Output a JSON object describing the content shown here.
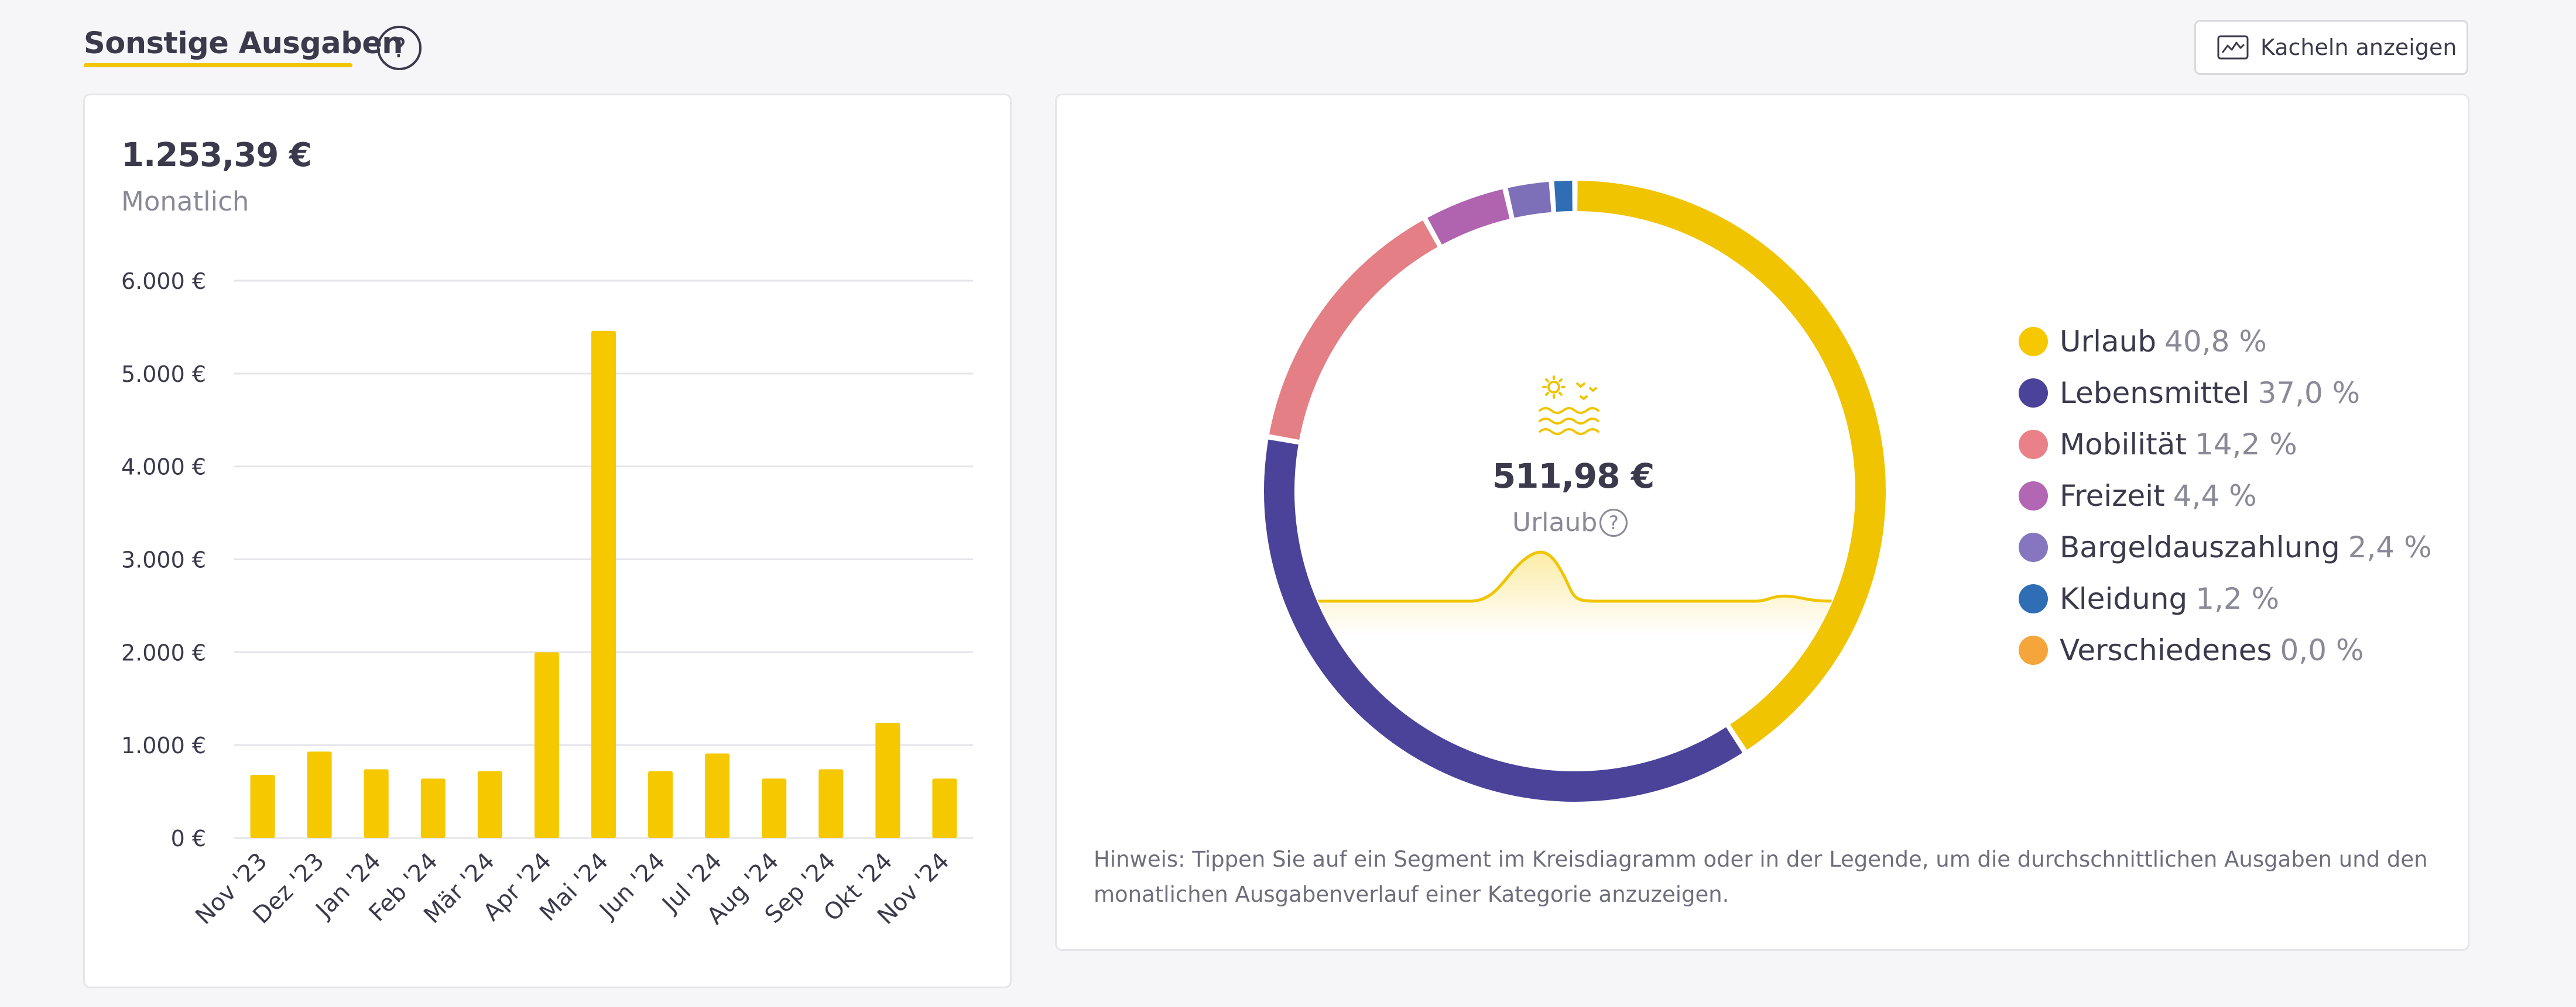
{
  "header": {
    "title": "Sonstige Ausgaben",
    "help_label": "?",
    "tiles_button_label": "Kacheln anzeigen"
  },
  "summary": {
    "amount": "1.253,39 €",
    "period": "Monatlich"
  },
  "chart_data": [
    {
      "type": "bar",
      "categories": [
        "Nov '23",
        "Dez '23",
        "Jan '24",
        "Feb '24",
        "Mär '24",
        "Apr '24",
        "Mai '24",
        "Jun '24",
        "Jul '24",
        "Aug '24",
        "Sep '24",
        "Okt '24",
        "Nov '24"
      ],
      "values": [
        680,
        930,
        740,
        640,
        720,
        2000,
        5460,
        720,
        910,
        640,
        740,
        1240,
        640
      ],
      "yticks": [
        "0 €",
        "1.000 €",
        "2.000 €",
        "3.000 €",
        "4.000 €",
        "5.000 €",
        "6.000 €"
      ],
      "ylim": [
        0,
        6000
      ],
      "color": "#f5c800",
      "grid": true
    },
    {
      "type": "pie",
      "variant": "donut",
      "labels": [
        "Urlaub",
        "Lebensmittel",
        "Mobilität",
        "Freizeit",
        "Bargeldauszahlung",
        "Kleidung",
        "Verschiedenes"
      ],
      "values": [
        40.8,
        37.0,
        14.2,
        4.4,
        2.4,
        1.2,
        0.0
      ],
      "colors": [
        "#f0c400",
        "#4a4399",
        "#e37f85",
        "#b064b0",
        "#7d6fb8",
        "#2f6db5",
        "#f5a53a"
      ]
    }
  ],
  "legend": [
    {
      "label": "Urlaub",
      "pct": "40,8 %",
      "color": "#f5c800"
    },
    {
      "label": "Lebensmittel",
      "pct": "37,0 %",
      "color": "#4a4399"
    },
    {
      "label": "Mobilität",
      "pct": "14,2 %",
      "color": "#ea8088"
    },
    {
      "label": "Freizeit",
      "pct": "4,4 %",
      "color": "#b266b4"
    },
    {
      "label": "Bargeldauszahlung",
      "pct": "2,4 %",
      "color": "#8576bf"
    },
    {
      "label": "Kleidung",
      "pct": "1,2 %",
      "color": "#2f6db5"
    },
    {
      "label": "Verschiedenes",
      "pct": "0,0 %",
      "color": "#f5a53a"
    }
  ],
  "center": {
    "amount": "511,98 €",
    "label": "Urlaub",
    "icon": "sun-waves-icon",
    "help_label": "?"
  },
  "hint": "Hinweis: Tippen Sie auf ein Segment im Kreisdiagramm oder in der Legende, um die durchschnittlichen Ausgaben und den monatlichen Ausgabenverlauf einer Kategorie anzuzeigen."
}
